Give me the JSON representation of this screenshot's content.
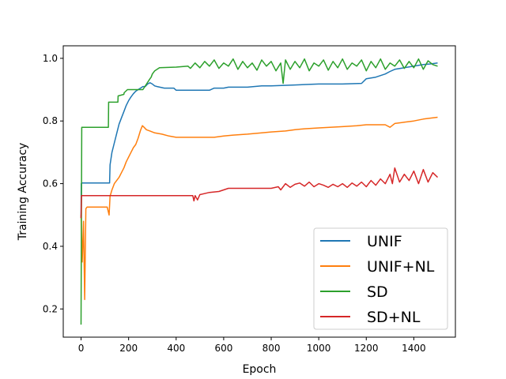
{
  "chart_data": {
    "type": "line",
    "title": "",
    "xlabel": "Epoch",
    "ylabel": "Training Accuracy",
    "xlim": [
      -75,
      1575
    ],
    "ylim": [
      0.11,
      1.04
    ],
    "xticks": [
      0,
      200,
      400,
      600,
      800,
      1000,
      1200,
      1400
    ],
    "yticks": [
      0.2,
      0.4,
      0.6,
      0.8,
      1.0
    ],
    "xtick_labels": [
      "0",
      "200",
      "400",
      "600",
      "800",
      "1000",
      "1200",
      "1400"
    ],
    "ytick_labels": [
      "0.2",
      "0.4",
      "0.6",
      "0.8",
      "1.0"
    ],
    "grid": false,
    "legend_position": "lower-right",
    "series": [
      {
        "name": "UNIF",
        "color": "#1f77b4",
        "x": [
          0,
          1,
          2,
          120,
          122,
          130,
          140,
          150,
          160,
          170,
          180,
          190,
          200,
          210,
          220,
          230,
          240,
          250,
          260,
          270,
          280,
          290,
          300,
          310,
          320,
          350,
          390,
          400,
          440,
          480,
          500,
          540,
          560,
          600,
          620,
          700,
          760,
          800,
          900,
          1000,
          1100,
          1180,
          1200,
          1240,
          1260,
          1280,
          1300,
          1320,
          1360,
          1400,
          1440,
          1470,
          1500
        ],
        "y": [
          0.49,
          0.6,
          0.602,
          0.602,
          0.66,
          0.7,
          0.73,
          0.76,
          0.79,
          0.81,
          0.83,
          0.85,
          0.865,
          0.877,
          0.887,
          0.895,
          0.9,
          0.905,
          0.91,
          0.91,
          0.918,
          0.922,
          0.918,
          0.912,
          0.91,
          0.905,
          0.905,
          0.898,
          0.898,
          0.898,
          0.898,
          0.898,
          0.905,
          0.905,
          0.908,
          0.908,
          0.912,
          0.912,
          0.915,
          0.918,
          0.918,
          0.92,
          0.935,
          0.94,
          0.945,
          0.95,
          0.958,
          0.965,
          0.97,
          0.975,
          0.98,
          0.982,
          0.985
        ]
      },
      {
        "name": "UNIF+NL",
        "color": "#ff7f0e",
        "x": [
          0,
          5,
          10,
          15,
          20,
          25,
          60,
          110,
          118,
          122,
          130,
          140,
          150,
          160,
          170,
          180,
          190,
          200,
          210,
          220,
          230,
          240,
          250,
          258,
          265,
          275,
          290,
          310,
          340,
          370,
          400,
          440,
          500,
          560,
          600,
          640,
          700,
          760,
          800,
          860,
          900,
          940,
          1000,
          1100,
          1160,
          1200,
          1280,
          1300,
          1320,
          1360,
          1400,
          1440,
          1480,
          1500
        ],
        "y": [
          0.5,
          0.35,
          0.48,
          0.23,
          0.52,
          0.525,
          0.525,
          0.525,
          0.5,
          0.56,
          0.58,
          0.6,
          0.61,
          0.62,
          0.635,
          0.65,
          0.67,
          0.685,
          0.7,
          0.715,
          0.725,
          0.745,
          0.77,
          0.785,
          0.78,
          0.772,
          0.768,
          0.762,
          0.758,
          0.752,
          0.748,
          0.748,
          0.748,
          0.748,
          0.752,
          0.755,
          0.758,
          0.762,
          0.765,
          0.768,
          0.772,
          0.775,
          0.778,
          0.782,
          0.785,
          0.788,
          0.788,
          0.78,
          0.792,
          0.796,
          0.8,
          0.806,
          0.81,
          0.812
        ]
      },
      {
        "name": "SD",
        "color": "#2ca02c",
        "x": [
          0,
          3,
          4,
          40,
          80,
          115,
          116,
          125,
          140,
          155,
          156,
          180,
          181,
          195,
          210,
          220,
          240,
          260,
          290,
          295,
          300,
          310,
          320,
          330,
          400,
          450,
          460,
          480,
          500,
          520,
          540,
          560,
          580,
          600,
          620,
          640,
          660,
          680,
          700,
          720,
          740,
          760,
          780,
          800,
          820,
          840,
          850,
          860,
          880,
          900,
          920,
          940,
          960,
          980,
          1000,
          1020,
          1040,
          1060,
          1080,
          1100,
          1120,
          1140,
          1160,
          1180,
          1200,
          1220,
          1240,
          1260,
          1280,
          1300,
          1320,
          1340,
          1360,
          1380,
          1400,
          1420,
          1440,
          1460,
          1480,
          1500
        ],
        "y": [
          0.15,
          0.78,
          0.78,
          0.78,
          0.78,
          0.78,
          0.86,
          0.86,
          0.86,
          0.86,
          0.88,
          0.885,
          0.89,
          0.9,
          0.9,
          0.9,
          0.9,
          0.9,
          0.935,
          0.94,
          0.95,
          0.96,
          0.965,
          0.97,
          0.972,
          0.975,
          0.968,
          0.985,
          0.97,
          0.99,
          0.975,
          0.995,
          0.968,
          0.985,
          0.975,
          0.998,
          0.965,
          0.99,
          0.97,
          0.985,
          0.962,
          0.995,
          0.975,
          0.99,
          0.96,
          0.985,
          0.92,
          0.995,
          0.965,
          0.99,
          0.97,
          0.998,
          0.96,
          0.985,
          0.975,
          0.995,
          0.962,
          0.99,
          0.97,
          0.998,
          0.965,
          0.985,
          0.975,
          0.995,
          0.96,
          0.99,
          0.97,
          0.998,
          0.965,
          0.985,
          0.975,
          0.995,
          0.968,
          0.99,
          0.97,
          0.998,
          0.965,
          0.992,
          0.98,
          0.975
        ]
      },
      {
        "name": "SD+NL",
        "color": "#d62728",
        "x": [
          0,
          2,
          3,
          100,
          200,
          300,
          400,
          470,
          475,
          480,
          490,
          500,
          540,
          580,
          600,
          620,
          700,
          780,
          800,
          830,
          840,
          860,
          880,
          900,
          920,
          940,
          960,
          980,
          1000,
          1020,
          1040,
          1060,
          1080,
          1100,
          1120,
          1140,
          1160,
          1180,
          1200,
          1220,
          1240,
          1260,
          1280,
          1300,
          1310,
          1320,
          1340,
          1360,
          1380,
          1400,
          1420,
          1440,
          1460,
          1480,
          1500
        ],
        "y": [
          0.49,
          0.562,
          0.562,
          0.562,
          0.562,
          0.562,
          0.562,
          0.562,
          0.545,
          0.562,
          0.548,
          0.565,
          0.572,
          0.575,
          0.58,
          0.585,
          0.585,
          0.585,
          0.585,
          0.59,
          0.58,
          0.6,
          0.588,
          0.598,
          0.602,
          0.592,
          0.605,
          0.59,
          0.6,
          0.595,
          0.588,
          0.598,
          0.59,
          0.6,
          0.588,
          0.602,
          0.592,
          0.605,
          0.59,
          0.61,
          0.595,
          0.615,
          0.6,
          0.63,
          0.6,
          0.65,
          0.605,
          0.63,
          0.61,
          0.64,
          0.6,
          0.645,
          0.605,
          0.635,
          0.62
        ]
      }
    ]
  }
}
